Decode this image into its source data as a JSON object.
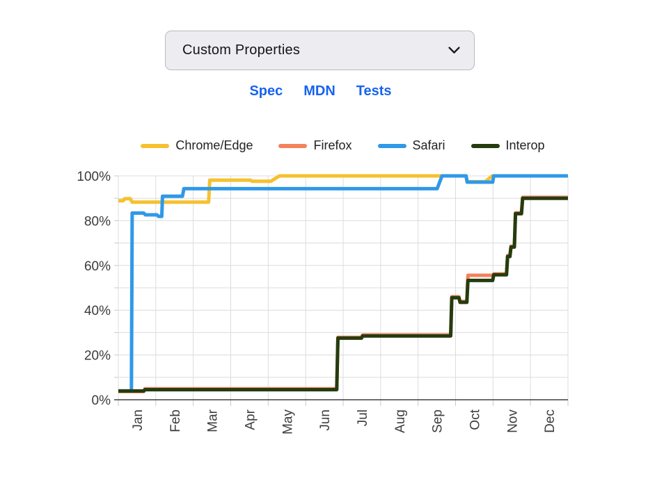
{
  "dropdown": {
    "value": "Custom Properties"
  },
  "links": [
    {
      "label": "Spec"
    },
    {
      "label": "MDN"
    },
    {
      "label": "Tests"
    }
  ],
  "colors": {
    "link_blue": "#1763f0",
    "dropdown_bg": "#ededf1",
    "dropdown_border": "#b9b9bf",
    "grid": "#dcdcdc",
    "tick": "#c9c9c9",
    "axis": "#3f3f3f",
    "chrome": "#f5c12f",
    "firefox": "#f4815c",
    "safari": "#2f99e8",
    "interop": "#253c0e"
  },
  "chart_data": {
    "type": "line",
    "title": "",
    "legend_position": "top",
    "grid": true,
    "x_axis": {
      "unit": "month",
      "min": 0,
      "max": 12,
      "gridline_every": 1,
      "tick_labels": [
        "Jan",
        "Feb",
        "Mar",
        "Apr",
        "May",
        "Jun",
        "Jul",
        "Aug",
        "Sep",
        "Oct",
        "Nov",
        "Dec"
      ],
      "label_rotation": -90
    },
    "y_axis": {
      "unit": "%",
      "min": 0,
      "max": 100,
      "gridline_step": 10,
      "label_step": 20,
      "tick_labels": [
        "0%",
        "20%",
        "40%",
        "60%",
        "80%",
        "100%"
      ]
    },
    "series": [
      {
        "name": "Chrome/Edge",
        "color": "#f5c12f",
        "points": [
          [
            0,
            88.9
          ],
          [
            0.13,
            88.9
          ],
          [
            0.17,
            89.8
          ],
          [
            0.32,
            89.8
          ],
          [
            0.37,
            88.3
          ],
          [
            2.41,
            88.3
          ],
          [
            2.44,
            98.1
          ],
          [
            3.53,
            98.1
          ],
          [
            3.57,
            97.6
          ],
          [
            4.07,
            97.6
          ],
          [
            4.3,
            100
          ],
          [
            9.28,
            100
          ],
          [
            9.31,
            97.4
          ],
          [
            9.79,
            97.4
          ],
          [
            9.98,
            100
          ],
          [
            12,
            100
          ]
        ]
      },
      {
        "name": "Firefox",
        "color": "#f4815c",
        "points": [
          [
            0,
            3.7
          ],
          [
            0.68,
            3.7
          ],
          [
            0.71,
            4.9
          ],
          [
            5.83,
            4.9
          ],
          [
            5.86,
            27.9
          ],
          [
            6.49,
            27.9
          ],
          [
            6.52,
            28.9
          ],
          [
            8.87,
            28.9
          ],
          [
            8.9,
            46.0
          ],
          [
            9.09,
            46.0
          ],
          [
            9.12,
            43.9
          ],
          [
            9.3,
            43.9
          ],
          [
            9.33,
            55.6
          ],
          [
            9.99,
            55.6
          ],
          [
            10.02,
            56.2
          ],
          [
            10.36,
            56.2
          ],
          [
            10.39,
            64.4
          ],
          [
            10.45,
            64.4
          ],
          [
            10.48,
            68.6
          ],
          [
            10.57,
            68.6
          ],
          [
            10.6,
            83.5
          ],
          [
            10.76,
            83.5
          ],
          [
            10.79,
            90.4
          ],
          [
            12,
            90.4
          ]
        ]
      },
      {
        "name": "Safari",
        "color": "#2f99e8",
        "points": [
          [
            0,
            3.9
          ],
          [
            0.35,
            3.9
          ],
          [
            0.37,
            83.4
          ],
          [
            0.68,
            83.4
          ],
          [
            0.72,
            82.6
          ],
          [
            1.03,
            82.6
          ],
          [
            1.08,
            81.9
          ],
          [
            1.16,
            81.9
          ],
          [
            1.18,
            90.9
          ],
          [
            1.71,
            90.9
          ],
          [
            1.75,
            94.3
          ],
          [
            8.51,
            94.3
          ],
          [
            8.64,
            100
          ],
          [
            9.28,
            100
          ],
          [
            9.31,
            97.2
          ],
          [
            9.99,
            97.2
          ],
          [
            10.02,
            100
          ],
          [
            12,
            100
          ]
        ]
      },
      {
        "name": "Interop",
        "color": "#253c0e",
        "points": [
          [
            0,
            3.9
          ],
          [
            0.68,
            3.9
          ],
          [
            0.71,
            4.5
          ],
          [
            5.83,
            4.5
          ],
          [
            5.86,
            27.5
          ],
          [
            6.49,
            27.5
          ],
          [
            6.52,
            28.5
          ],
          [
            8.87,
            28.5
          ],
          [
            8.9,
            45.6
          ],
          [
            9.09,
            45.6
          ],
          [
            9.12,
            43.5
          ],
          [
            9.3,
            43.5
          ],
          [
            9.33,
            53.3
          ],
          [
            9.99,
            53.3
          ],
          [
            10.02,
            55.8
          ],
          [
            10.36,
            55.8
          ],
          [
            10.39,
            64.0
          ],
          [
            10.45,
            64.0
          ],
          [
            10.48,
            68.2
          ],
          [
            10.57,
            68.2
          ],
          [
            10.6,
            83.1
          ],
          [
            10.76,
            83.1
          ],
          [
            10.79,
            90.0
          ],
          [
            12,
            90.0
          ]
        ]
      }
    ]
  }
}
